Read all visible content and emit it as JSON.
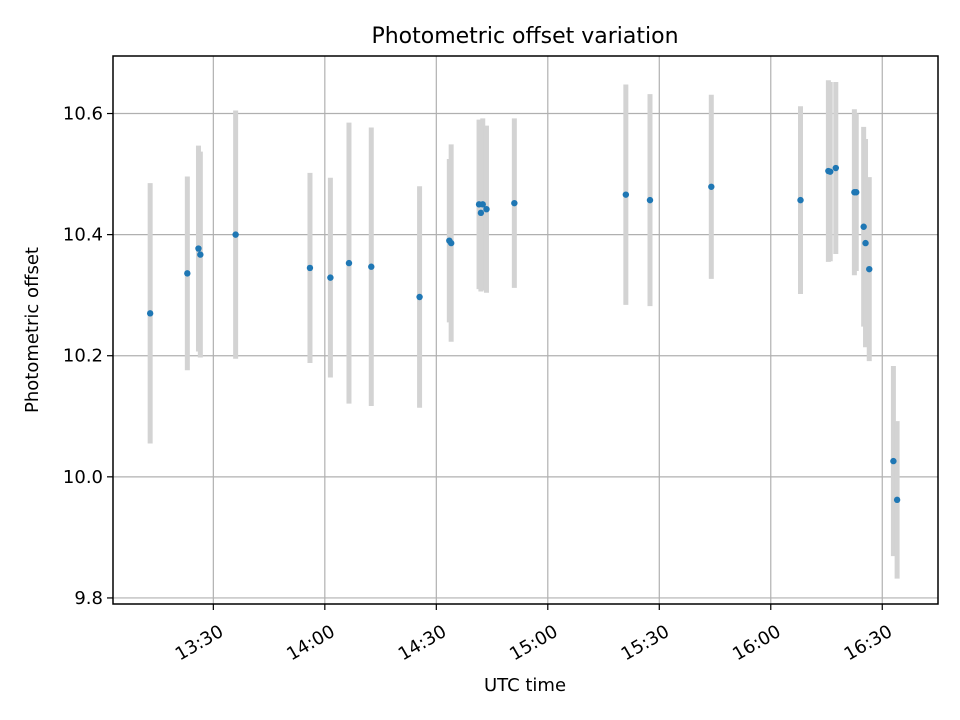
{
  "chart_data": {
    "type": "scatter",
    "title": "Photometric offset variation",
    "xlabel": "UTC time",
    "ylabel": "Photometric offset",
    "xlim": [
      "13:03",
      "16:45"
    ],
    "ylim": [
      9.79,
      10.695
    ],
    "x_ticks": [
      "13:30",
      "14:00",
      "14:30",
      "15:00",
      "15:30",
      "16:00",
      "16:30"
    ],
    "y_ticks": [
      "9.8",
      "10.0",
      "10.2",
      "10.4",
      "10.6"
    ],
    "grid": true,
    "colors": {
      "point": "#1f77b4",
      "errorbar": "#d3d3d3",
      "grid": "#b0b0b0",
      "axes": "#000000"
    },
    "series": [
      {
        "points": [
          {
            "time": "13:13:00",
            "y": 10.27,
            "err": 0.215
          },
          {
            "time": "13:23:00",
            "y": 10.336,
            "err": 0.16
          },
          {
            "time": "13:26:00",
            "y": 10.377,
            "err": 0.17
          },
          {
            "time": "13:26:30",
            "y": 10.367,
            "err": 0.17
          },
          {
            "time": "13:36:00",
            "y": 10.4,
            "err": 0.205
          },
          {
            "time": "13:56:00",
            "y": 10.345,
            "err": 0.157
          },
          {
            "time": "14:01:30",
            "y": 10.329,
            "err": 0.165
          },
          {
            "time": "14:06:30",
            "y": 10.353,
            "err": 0.232
          },
          {
            "time": "14:12:30",
            "y": 10.347,
            "err": 0.23
          },
          {
            "time": "14:25:30",
            "y": 10.297,
            "err": 0.183
          },
          {
            "time": "14:33:30",
            "y": 10.39,
            "err": 0.135
          },
          {
            "time": "14:34:00",
            "y": 10.386,
            "err": 0.163
          },
          {
            "time": "14:41:30",
            "y": 10.45,
            "err": 0.14
          },
          {
            "time": "14:42:00",
            "y": 10.436,
            "err": 0.13
          },
          {
            "time": "14:42:30",
            "y": 10.45,
            "err": 0.142
          },
          {
            "time": "14:43:30",
            "y": 10.442,
            "err": 0.138
          },
          {
            "time": "14:51:00",
            "y": 10.452,
            "err": 0.14
          },
          {
            "time": "15:21:00",
            "y": 10.466,
            "err": 0.182
          },
          {
            "time": "15:27:30",
            "y": 10.457,
            "err": 0.175
          },
          {
            "time": "15:44:00",
            "y": 10.479,
            "err": 0.152
          },
          {
            "time": "16:08:00",
            "y": 10.457,
            "err": 0.155
          },
          {
            "time": "16:15:30",
            "y": 10.505,
            "err": 0.15
          },
          {
            "time": "16:16:00",
            "y": 10.504,
            "err": 0.148
          },
          {
            "time": "16:17:30",
            "y": 10.51,
            "err": 0.142
          },
          {
            "time": "16:22:30",
            "y": 10.47,
            "err": 0.137
          },
          {
            "time": "16:23:00",
            "y": 10.47,
            "err": 0.13
          },
          {
            "time": "16:25:00",
            "y": 10.413,
            "err": 0.165
          },
          {
            "time": "16:25:30",
            "y": 10.386,
            "err": 0.172
          },
          {
            "time": "16:26:30",
            "y": 10.343,
            "err": 0.152
          },
          {
            "time": "16:33:00",
            "y": 10.026,
            "err": 0.157
          },
          {
            "time": "16:34:00",
            "y": 9.962,
            "err": 0.13
          }
        ]
      }
    ]
  }
}
